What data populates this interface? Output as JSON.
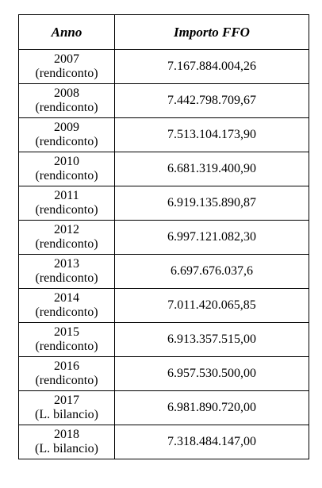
{
  "table": {
    "header": [
      "Anno",
      "Importo FFO"
    ],
    "rows": [
      [
        "2007",
        "(rendiconto)",
        "7.167.884.004,26"
      ],
      [
        "2008",
        "(rendiconto)",
        "7.442.798.709,67"
      ],
      [
        "2009",
        "(rendiconto)",
        "7.513.104.173,90"
      ],
      [
        "2010",
        "(rendiconto)",
        "6.681.319.400,90"
      ],
      [
        "2011",
        "(rendiconto)",
        "6.919.135.890,87"
      ],
      [
        "2012",
        "(rendiconto)",
        "6.997.121.082,30"
      ],
      [
        "2013",
        "(rendiconto)",
        "6.697.676.037,6"
      ],
      [
        "2014",
        "(rendiconto)",
        "7.011.420.065,85"
      ],
      [
        "2015",
        "(rendiconto)",
        "6.913.357.515,00"
      ],
      [
        "2016",
        "(rendiconto)",
        "6.957.530.500,00"
      ],
      [
        "2017",
        "(L. bilancio)",
        "6.981.890.720,00"
      ],
      [
        "2018",
        "(L. bilancio)",
        "7.318.484.147,00"
      ]
    ]
  }
}
